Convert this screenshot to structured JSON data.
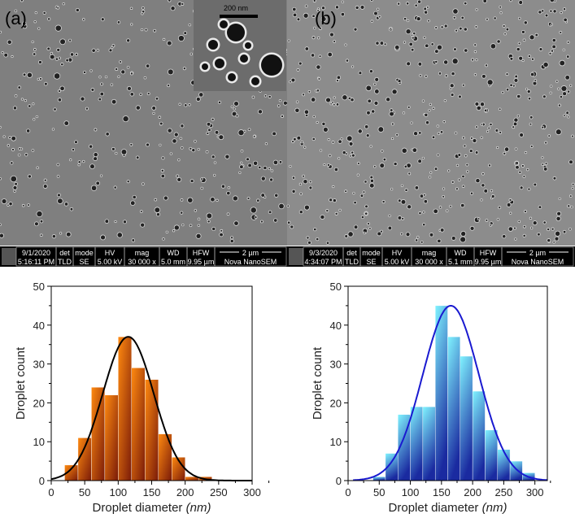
{
  "panels": [
    {
      "label": "(a)",
      "inset_scale": "200 nm",
      "info": {
        "date": "9/1/2020",
        "time": "5:16:11 PM",
        "det_h": "det",
        "det": "TLD",
        "mode_h": "mode",
        "mode": "SE",
        "hv_h": "HV",
        "hv": "5.00 kV",
        "mag_h": "mag",
        "mag": "30 000 x",
        "wd_h": "WD",
        "wd": "5.0 mm",
        "hfw_h": "HFW",
        "hfw": "9.95 µm",
        "scale": "2 µm",
        "instrument": "Nova NanoSEM"
      }
    },
    {
      "label": "(b)",
      "info": {
        "date": "9/3/2020",
        "time": "4:34:07 PM",
        "det_h": "det",
        "det": "TLD",
        "mode_h": "mode",
        "mode": "SE",
        "hv_h": "HV",
        "hv": "5.00 kV",
        "mag_h": "mag",
        "mag": "30 000 x",
        "wd_h": "WD",
        "wd": "5.1 mm",
        "hfw_h": "HFW",
        "hfw": "9.95 µm",
        "scale": "2 µm",
        "instrument": "Nova NanoSEM"
      }
    }
  ],
  "chart_data": [
    {
      "type": "bar",
      "title": "",
      "xlabel": "Droplet diameter",
      "xunit": "(nm)",
      "ylabel": "Droplet count",
      "xlim": [
        0,
        300
      ],
      "ylim": [
        0,
        50
      ],
      "xticks": [
        0,
        50,
        100,
        150,
        200,
        250,
        300
      ],
      "yticks": [
        0,
        10,
        20,
        30,
        40,
        50
      ],
      "bin_width": 20,
      "bin_starts": [
        20,
        40,
        60,
        80,
        100,
        120,
        140,
        160,
        180,
        200,
        220
      ],
      "values": [
        4,
        11,
        24,
        22,
        37,
        29,
        26,
        12,
        6,
        1,
        1
      ],
      "fit": {
        "type": "gaussian",
        "mean": 115,
        "sigma": 38,
        "peak": 37
      },
      "bar_color": "#ff8a10",
      "bar_dark": "#7a1a08",
      "fit_color": "#000000"
    },
    {
      "type": "bar",
      "title": "",
      "xlabel": "Droplet diameter",
      "xunit": "(nm)",
      "ylabel": "Droplet count",
      "xlim": [
        0,
        320
      ],
      "ylim": [
        0,
        50
      ],
      "xticks": [
        0,
        50,
        100,
        150,
        200,
        250,
        300
      ],
      "yticks": [
        0,
        10,
        20,
        30,
        40,
        50
      ],
      "bin_width": 20,
      "bin_starts": [
        40,
        60,
        80,
        100,
        120,
        140,
        160,
        180,
        200,
        220,
        240,
        260,
        280
      ],
      "values": [
        1,
        7,
        17,
        19,
        19,
        45,
        37,
        32,
        23,
        13,
        8,
        5,
        2
      ],
      "fit": {
        "type": "gaussian",
        "mean": 165,
        "sigma": 45,
        "peak": 45
      },
      "bar_color": "#80f4ff",
      "bar_dark": "#1a2aa0",
      "fit_color": "#1a1ad0"
    }
  ]
}
